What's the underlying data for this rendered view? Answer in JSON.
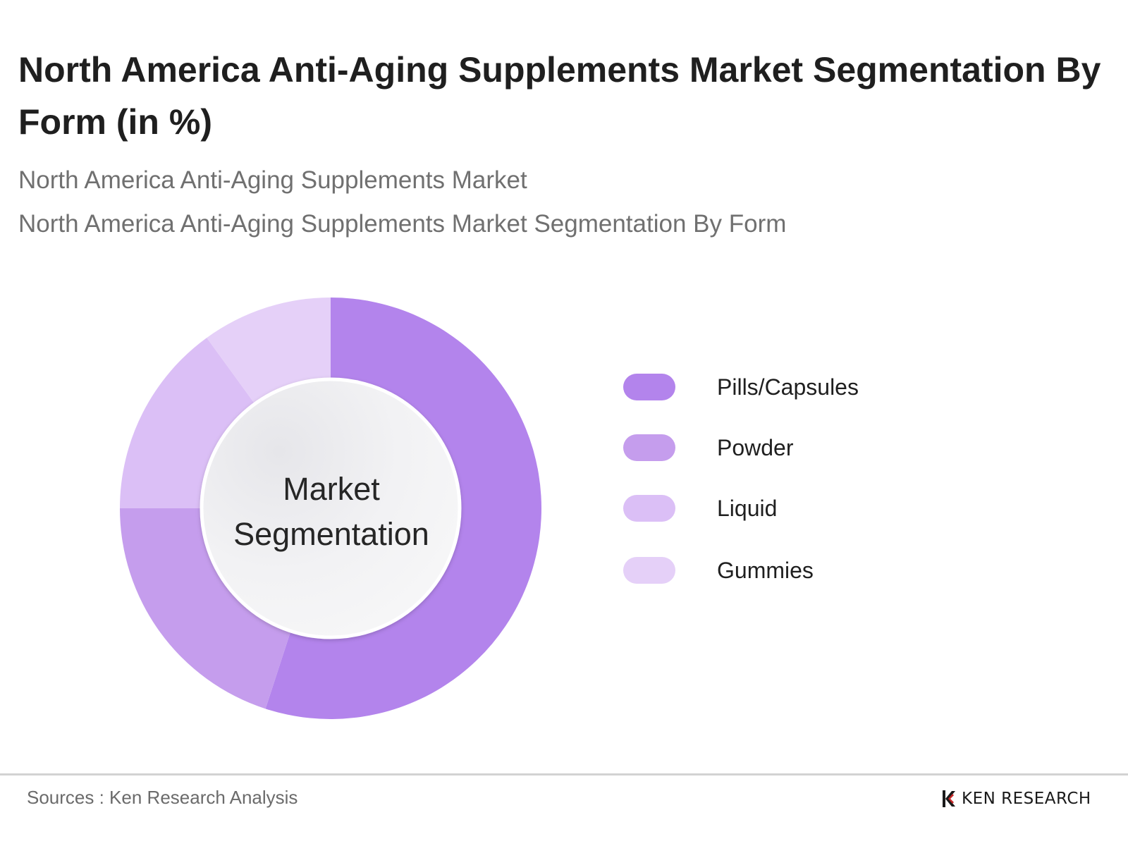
{
  "header": {
    "title": "North America Anti-Aging Supplements Market Segmentation By Form (in %)",
    "subtitle_1": "North America Anti-Aging Supplements Market",
    "subtitle_2": "North America Anti-Aging Supplements Market Segmentation By Form"
  },
  "chart_data": {
    "type": "pie",
    "variant": "donut",
    "center_label": "Market Segmentation",
    "categories": [
      "Pills/Capsules",
      "Powder",
      "Liquid",
      "Gummies"
    ],
    "values": [
      55,
      20,
      15,
      10
    ],
    "colors": [
      "#b384ec",
      "#c59ded",
      "#dbbff6",
      "#e5d0f8"
    ],
    "legend_position": "right"
  },
  "footer": {
    "source": "Sources : Ken Research Analysis",
    "brand": "KEN RESEARCH"
  }
}
